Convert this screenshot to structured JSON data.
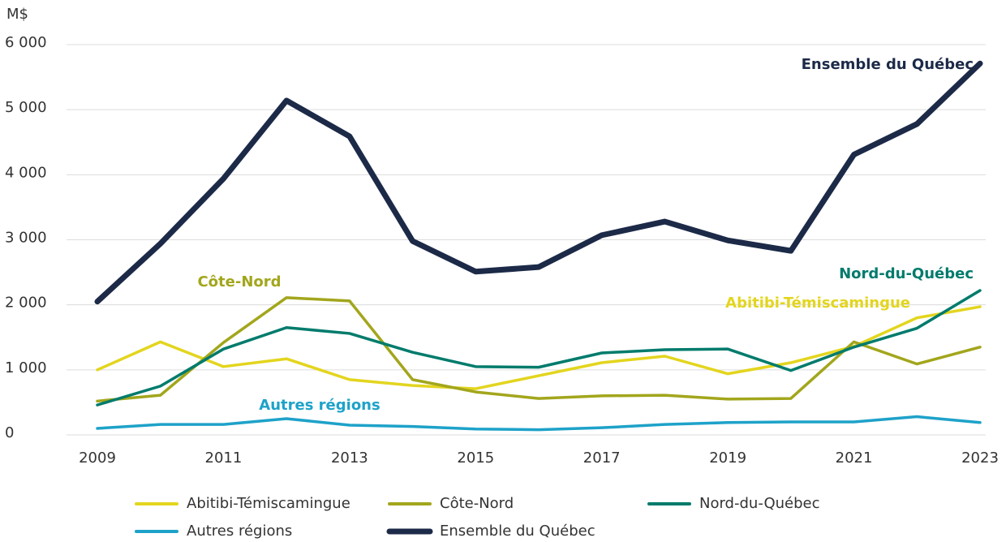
{
  "chart_data": {
    "type": "line",
    "y_axis_label": "M$",
    "x": [
      2009,
      2010,
      2011,
      2012,
      2013,
      2014,
      2015,
      2016,
      2017,
      2018,
      2019,
      2020,
      2021,
      2022,
      2023
    ],
    "xlim": [
      2009,
      2023
    ],
    "xticks": [
      2009,
      2011,
      2013,
      2015,
      2017,
      2019,
      2021,
      2023
    ],
    "ylim": [
      0,
      6000
    ],
    "yticks": [
      0,
      {
        "value": 1000,
        "label": "1 000"
      },
      {
        "value": 2000,
        "label": "2 000"
      },
      {
        "value": 3000,
        "label": "3 000"
      },
      {
        "value": 4000,
        "label": "4 000"
      },
      {
        "value": 5000,
        "label": "5 000"
      },
      {
        "value": 6000,
        "label": "6 000"
      }
    ],
    "grid": true,
    "legend": "bottom",
    "series": [
      {
        "name": "Abitibi-Témiscamingue",
        "color": "#e3d51e",
        "values": [
          1000,
          1430,
          1050,
          1170,
          850,
          760,
          710,
          910,
          1110,
          1210,
          940,
          1110,
          1360,
          1800,
          1970
        ]
      },
      {
        "name": "Côte-Nord",
        "color": "#a2a61c",
        "values": [
          520,
          610,
          1420,
          2110,
          2060,
          850,
          660,
          560,
          600,
          610,
          550,
          560,
          1430,
          1090,
          1350
        ]
      },
      {
        "name": "Nord-du-Québec",
        "color": "#007b6c",
        "values": [
          460,
          750,
          1320,
          1650,
          1560,
          1270,
          1050,
          1040,
          1260,
          1310,
          1320,
          990,
          1350,
          1640,
          2220
        ]
      },
      {
        "name": "Autres régions",
        "color": "#1ea2c9",
        "values": [
          100,
          160,
          160,
          250,
          150,
          130,
          90,
          80,
          110,
          160,
          190,
          200,
          200,
          280,
          190
        ]
      },
      {
        "name": "Ensemble du Québec",
        "color": "#1c2a48",
        "values": [
          2050,
          2940,
          3940,
          5140,
          4590,
          2980,
          2510,
          2580,
          3070,
          3280,
          2990,
          2830,
          4310,
          4780,
          5710
        ]
      }
    ]
  }
}
